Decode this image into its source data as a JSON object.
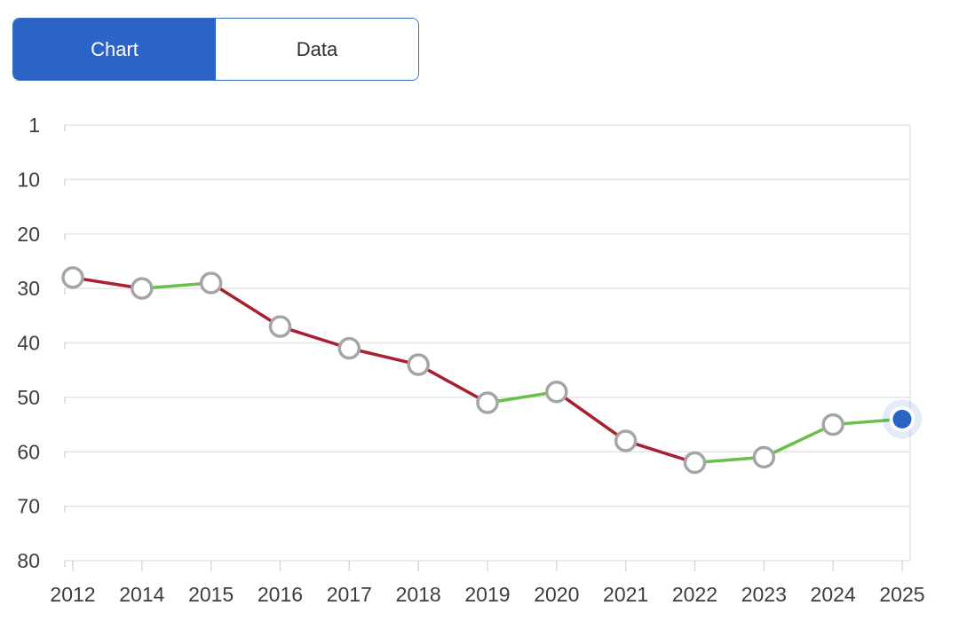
{
  "toggle": {
    "chart_label": "Chart",
    "data_label": "Data",
    "selected": "Chart"
  },
  "chart_data": {
    "type": "line",
    "title": "",
    "xlabel": "",
    "ylabel": "",
    "x_categories": [
      "2012",
      "2014",
      "2015",
      "2016",
      "2017",
      "2018",
      "2019",
      "2020",
      "2021",
      "2022",
      "2023",
      "2024",
      "2025"
    ],
    "values": [
      28,
      30,
      29,
      37,
      41,
      44,
      51,
      49,
      58,
      62,
      61,
      55,
      54
    ],
    "y_ticks": [
      1,
      10,
      20,
      30,
      40,
      50,
      60,
      70,
      80
    ],
    "y_axis_inverted": true,
    "grid": true,
    "legend": "none",
    "segment_color_rule": "green when rank number decreases (improves), red when it increases (worsens)",
    "current_point_index": 12,
    "colors": {
      "improve_green": "#68bf4a",
      "decline_red": "#a81f2f",
      "current_blue": "#2b63c6",
      "current_halo": "rgba(43,99,198,0.13)",
      "marker_fill": "#ffffff",
      "marker_stroke": "#a5a5a5",
      "grid_line": "#e5e5e5",
      "tick_mark": "#d9d9d9",
      "axis_text": "#3d3d3d",
      "accent_blue": "#2b63c6"
    }
  }
}
